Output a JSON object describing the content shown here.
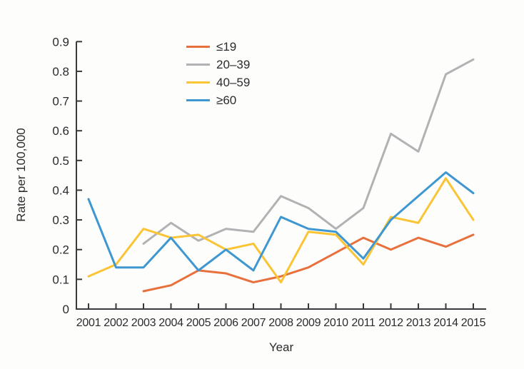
{
  "chart_data": {
    "type": "line",
    "title": "",
    "xlabel": "Year",
    "ylabel": "Rate per 100,000",
    "x": [
      2001,
      2002,
      2003,
      2004,
      2005,
      2006,
      2007,
      2008,
      2009,
      2010,
      2011,
      2012,
      2013,
      2014,
      2015
    ],
    "ylim": [
      0,
      0.9
    ],
    "yticks": [
      0,
      0.1,
      0.2,
      0.3,
      0.4,
      0.5,
      0.6,
      0.7,
      0.8,
      0.9
    ],
    "grid": false,
    "legend_position": "top-inside",
    "series": [
      {
        "key": "age-le-19",
        "name": "≤19",
        "color": "#E7703C",
        "values": [
          null,
          null,
          0.06,
          0.08,
          0.13,
          0.12,
          0.09,
          0.11,
          0.14,
          0.19,
          0.24,
          0.2,
          0.24,
          0.21,
          0.25
        ]
      },
      {
        "key": "age-20-39",
        "name": "20–39",
        "color": "#B2B2B4",
        "values": [
          null,
          null,
          0.22,
          0.29,
          0.23,
          0.27,
          0.26,
          0.38,
          0.34,
          0.27,
          0.34,
          0.59,
          0.53,
          0.79,
          0.84
        ]
      },
      {
        "key": "age-40-59",
        "name": "40–59",
        "color": "#FAC435",
        "values": [
          0.11,
          0.15,
          0.27,
          0.24,
          0.25,
          0.2,
          0.22,
          0.09,
          0.26,
          0.25,
          0.15,
          0.31,
          0.29,
          0.44,
          0.3
        ]
      },
      {
        "key": "age-ge-60",
        "name": "≥60",
        "color": "#3F97D1",
        "values": [
          0.37,
          0.14,
          0.14,
          0.24,
          0.13,
          0.2,
          0.13,
          0.31,
          0.27,
          0.26,
          0.17,
          0.3,
          0.38,
          0.46,
          0.39
        ]
      }
    ]
  },
  "colors": {
    "axis": "#3a3a3c",
    "text": "#2b2b2d",
    "background": "#fdfdfc"
  }
}
